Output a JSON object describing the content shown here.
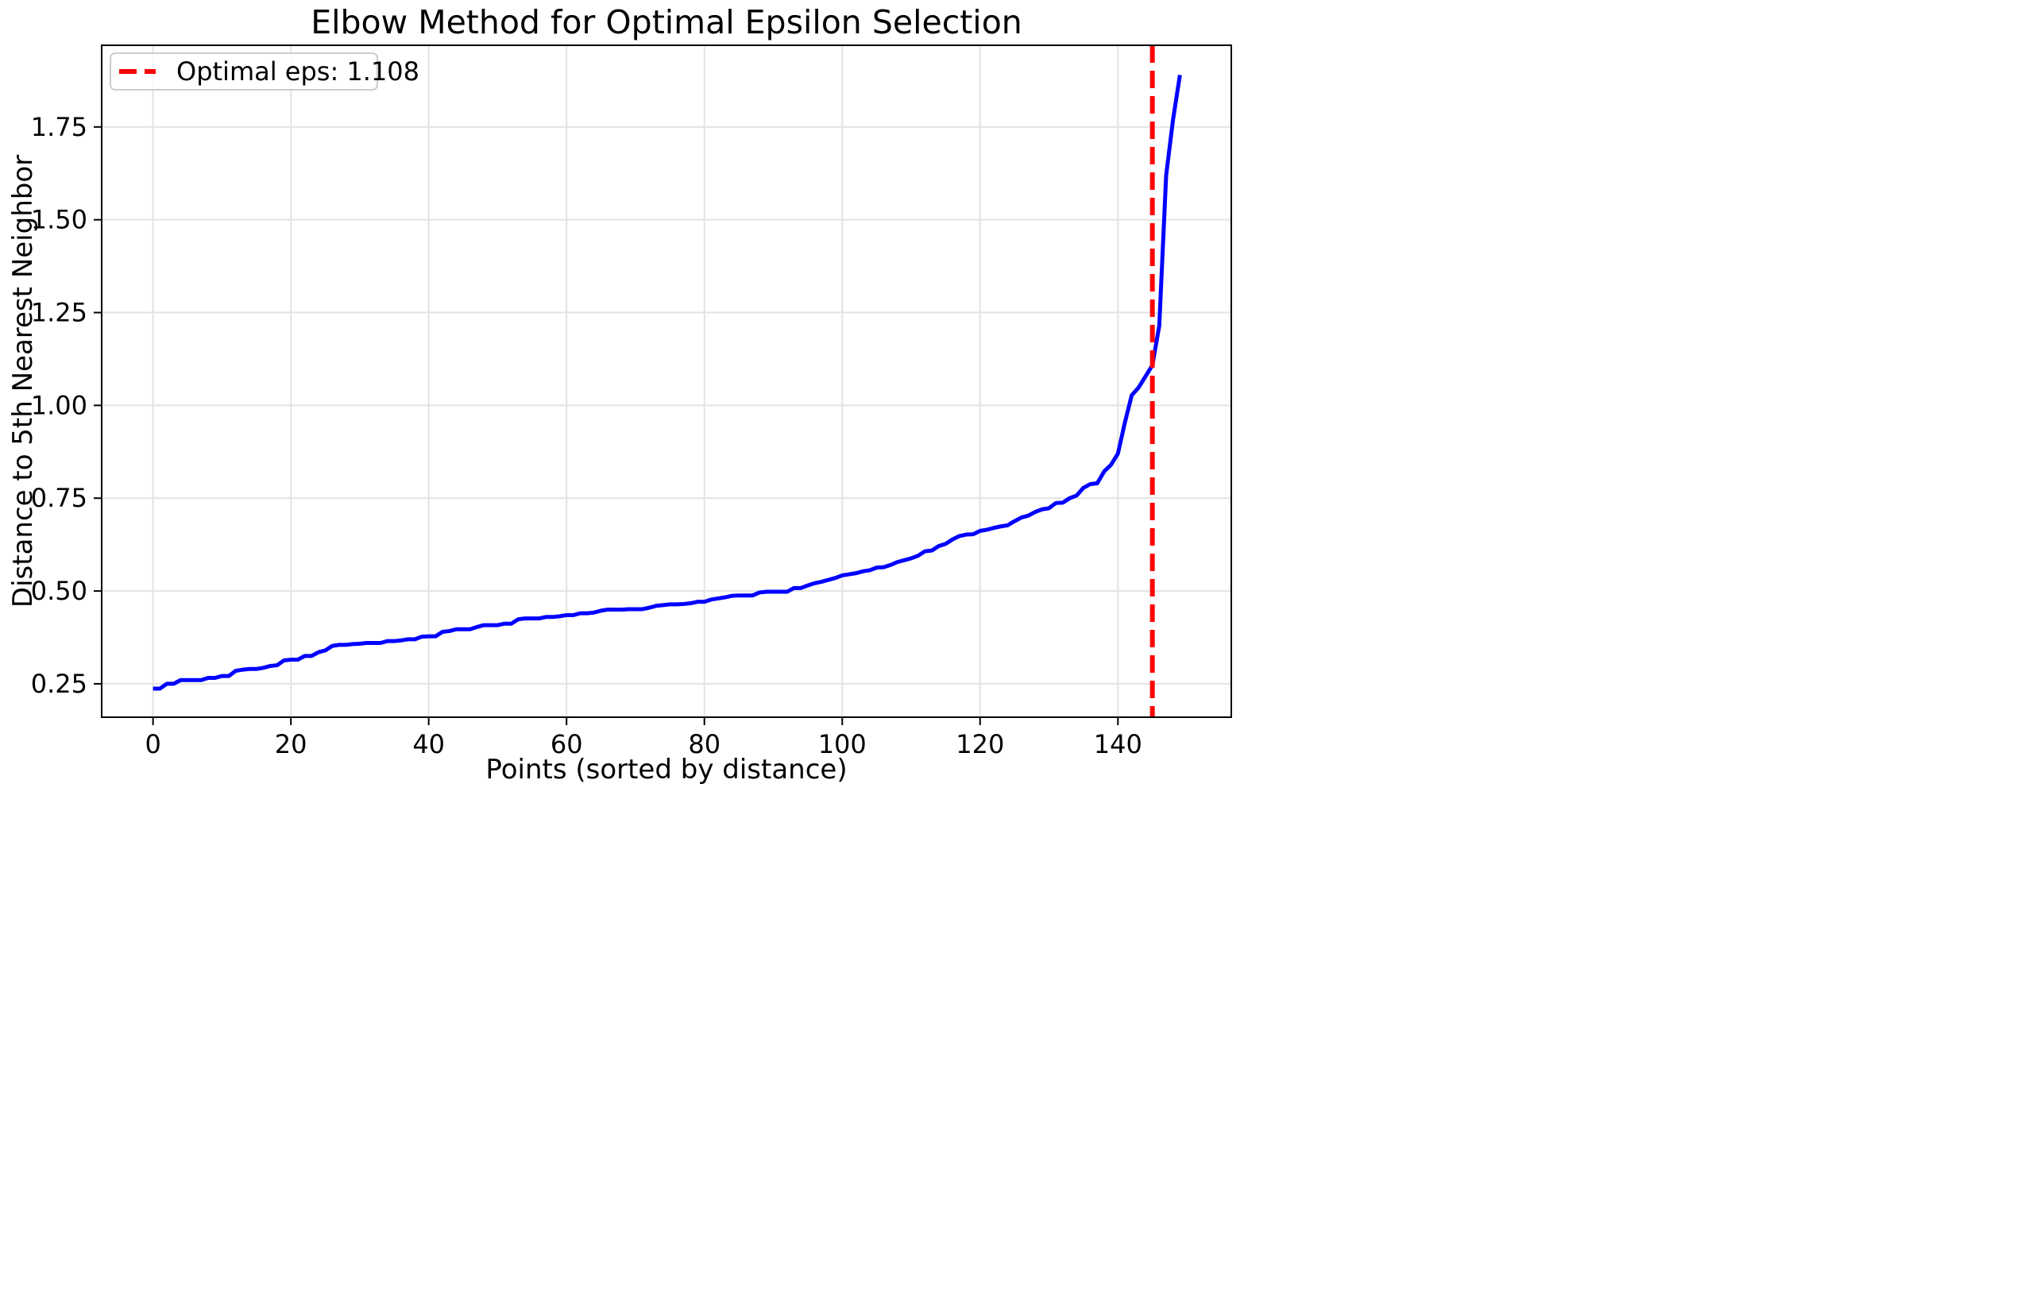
{
  "chart_data": {
    "type": "line",
    "title": "Elbow Method for Optimal Epsilon Selection",
    "xlabel": "Points (sorted by distance)",
    "ylabel": "Distance to 5th Nearest Neighbor",
    "xlim": [
      -7.45,
      156.45
    ],
    "ylim": [
      0.16,
      1.97
    ],
    "x_ticks": [
      0,
      20,
      40,
      60,
      80,
      100,
      120,
      140
    ],
    "y_ticks": [
      0.25,
      0.5,
      0.75,
      1.0,
      1.25,
      1.5,
      1.75
    ],
    "x_tick_labels": [
      "0",
      "20",
      "40",
      "60",
      "80",
      "100",
      "120",
      "140"
    ],
    "y_tick_labels": [
      "0.25",
      "0.50",
      "0.75",
      "1.00",
      "1.25",
      "1.50",
      "1.75"
    ],
    "grid": true,
    "legend_position": "top-left",
    "series": [
      {
        "kind": "line",
        "color": "#0000ff",
        "x_start": 0,
        "x_step": 1,
        "values": [
          0.237,
          0.237,
          0.25,
          0.25,
          0.26,
          0.26,
          0.26,
          0.26,
          0.266,
          0.266,
          0.271,
          0.271,
          0.285,
          0.288,
          0.29,
          0.29,
          0.293,
          0.298,
          0.3,
          0.313,
          0.315,
          0.315,
          0.325,
          0.325,
          0.335,
          0.34,
          0.352,
          0.355,
          0.355,
          0.357,
          0.358,
          0.36,
          0.36,
          0.36,
          0.365,
          0.365,
          0.367,
          0.37,
          0.37,
          0.377,
          0.378,
          0.378,
          0.39,
          0.392,
          0.397,
          0.397,
          0.397,
          0.403,
          0.408,
          0.408,
          0.408,
          0.412,
          0.412,
          0.424,
          0.426,
          0.426,
          0.426,
          0.43,
          0.43,
          0.432,
          0.435,
          0.435,
          0.44,
          0.44,
          0.442,
          0.447,
          0.45,
          0.45,
          0.45,
          0.451,
          0.451,
          0.451,
          0.455,
          0.46,
          0.462,
          0.464,
          0.464,
          0.465,
          0.467,
          0.471,
          0.471,
          0.477,
          0.48,
          0.483,
          0.487,
          0.488,
          0.488,
          0.488,
          0.496,
          0.498,
          0.498,
          0.498,
          0.498,
          0.508,
          0.508,
          0.515,
          0.521,
          0.525,
          0.53,
          0.535,
          0.542,
          0.545,
          0.548,
          0.553,
          0.556,
          0.563,
          0.564,
          0.57,
          0.578,
          0.583,
          0.588,
          0.595,
          0.607,
          0.609,
          0.621,
          0.627,
          0.639,
          0.648,
          0.652,
          0.653,
          0.662,
          0.665,
          0.67,
          0.674,
          0.677,
          0.688,
          0.698,
          0.703,
          0.713,
          0.72,
          0.723,
          0.737,
          0.738,
          0.75,
          0.757,
          0.778,
          0.788,
          0.79,
          0.822,
          0.84,
          0.87,
          0.953,
          1.027,
          1.048,
          1.078,
          1.108,
          1.215,
          1.62,
          1.77,
          1.89
        ]
      },
      {
        "kind": "vline",
        "name": "Optimal eps: 1.108",
        "color": "#ff0000",
        "x": 145
      }
    ],
    "legend": [
      {
        "label": "Optimal eps: 1.108",
        "color": "#ff0000",
        "style": "dashed"
      }
    ]
  }
}
